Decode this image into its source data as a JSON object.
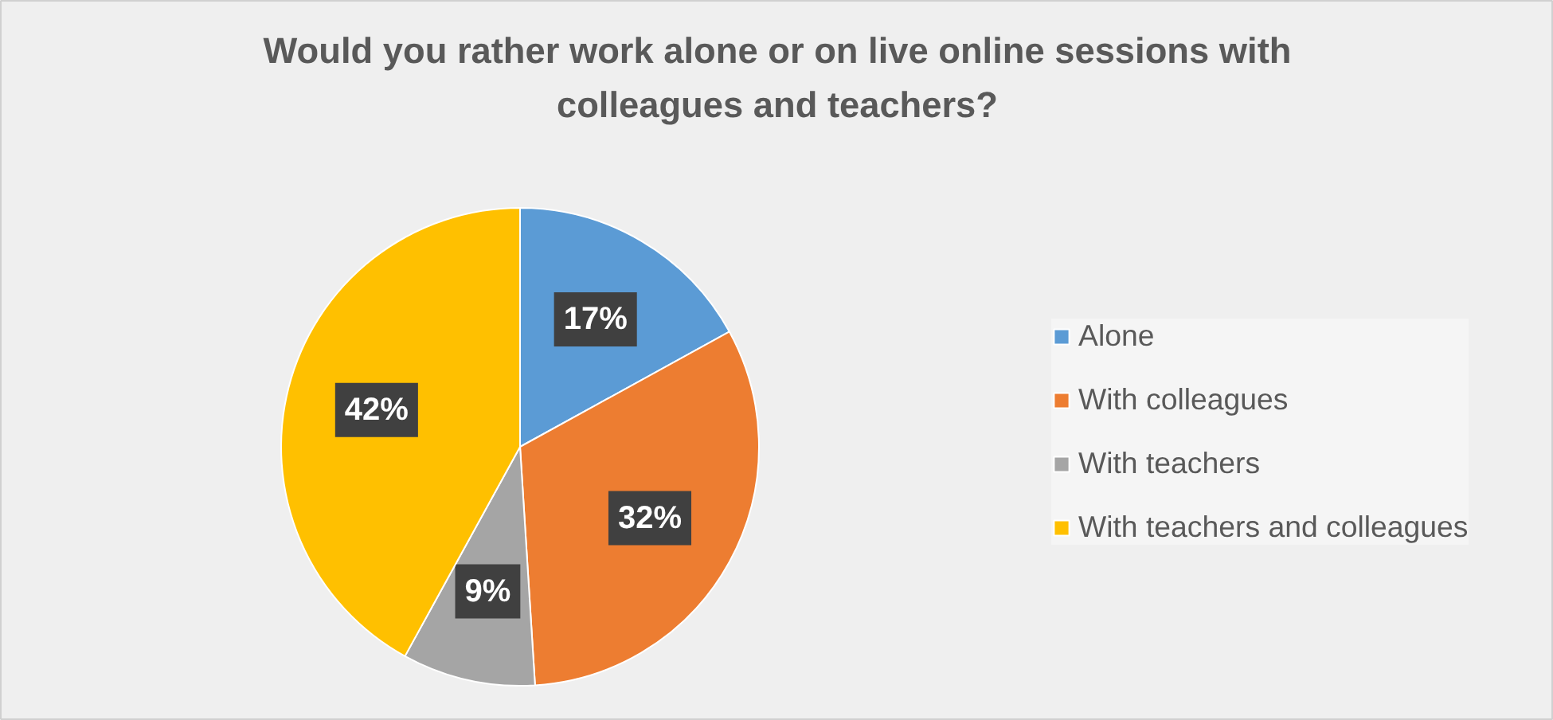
{
  "chart_data": {
    "type": "pie",
    "title": "Would you rather work alone or on live online sessions with colleagues and teachers?",
    "categories": [
      "Alone",
      "With colleagues",
      "With teachers",
      "With teachers and colleagues"
    ],
    "values": [
      17,
      32,
      9,
      42
    ],
    "colors": [
      "#5b9bd5",
      "#ed7d31",
      "#a5a5a5",
      "#ffc000"
    ],
    "value_labels": [
      "17%",
      "32%",
      "9%",
      "42%"
    ],
    "legend": "right"
  }
}
